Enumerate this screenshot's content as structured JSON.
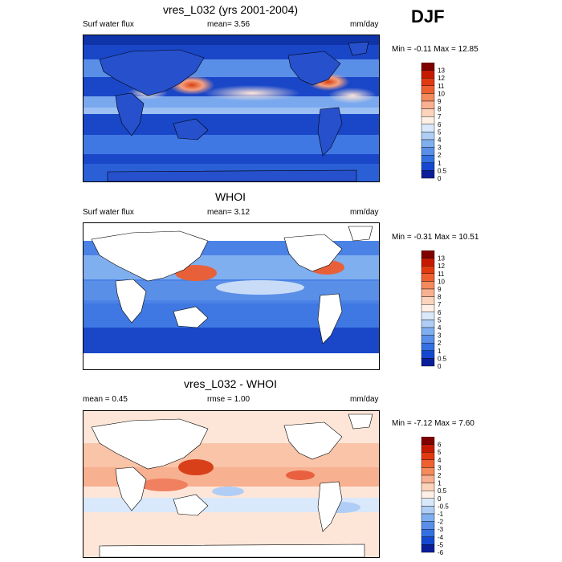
{
  "season": "DJF",
  "panels": [
    {
      "title": "vres_L032 (yrs 2001-2004)",
      "left": "Surf water flux",
      "center": "mean=   3.56",
      "right": "mm/day",
      "minmax": "Min =  -0.11 Max =  12.85",
      "type": "model"
    },
    {
      "title": "WHOI",
      "left": "Surf water flux",
      "center": "mean=   3.12",
      "right": "mm/day",
      "minmax": "Min =  -0.31 Max =  10.51",
      "type": "obs"
    },
    {
      "title": "vres_L032 - WHOI",
      "left": "mean =   0.45",
      "center": "rmse =   1.00",
      "right": "mm/day",
      "minmax": "Min =  -7.12 Max =  7.60",
      "type": "diff"
    }
  ],
  "chart_data": [
    {
      "type": "heatmap",
      "title": "vres_L032 (yrs 2001-2004)",
      "variable": "Surf water flux",
      "units": "mm/day",
      "mean": 3.56,
      "min": -0.11,
      "max": 12.85,
      "colorbar_levels": [
        "13",
        "12",
        "11",
        "10",
        "9",
        "8",
        "7",
        "6",
        "5",
        "4",
        "3",
        "2",
        "1",
        "0.5",
        "0"
      ],
      "colors": [
        "#800000",
        "#c61a00",
        "#e23a10",
        "#ee6030",
        "#f58a5c",
        "#f9b090",
        "#fcd3bb",
        "#fff0e6",
        "#d9e8fb",
        "#b0cef5",
        "#80aff0",
        "#5a8fe8",
        "#3370e0",
        "#1548d0",
        "#0a1e9a"
      ]
    },
    {
      "type": "heatmap",
      "title": "WHOI",
      "variable": "Surf water flux",
      "units": "mm/day",
      "mean": 3.12,
      "min": -0.31,
      "max": 10.51,
      "colorbar_levels": [
        "13",
        "12",
        "11",
        "10",
        "9",
        "8",
        "7",
        "6",
        "5",
        "4",
        "3",
        "2",
        "1",
        "0.5",
        "0"
      ],
      "colors": [
        "#800000",
        "#c61a00",
        "#e23a10",
        "#ee6030",
        "#f58a5c",
        "#f9b090",
        "#fcd3bb",
        "#fff0e6",
        "#d9e8fb",
        "#b0cef5",
        "#80aff0",
        "#5a8fe8",
        "#3370e0",
        "#1548d0",
        "#0a1e9a"
      ]
    },
    {
      "type": "heatmap",
      "title": "vres_L032 - WHOI",
      "units": "mm/day",
      "mean": 0.45,
      "rmse": 1.0,
      "min": -7.12,
      "max": 7.6,
      "colorbar_levels": [
        "6",
        "5",
        "4",
        "3",
        "2",
        "1",
        "0.5",
        "0",
        "-0.5",
        "-1",
        "-2",
        "-3",
        "-4",
        "-5",
        "-6"
      ],
      "colors": [
        "#800000",
        "#c61a00",
        "#e23a10",
        "#ee6030",
        "#f58a5c",
        "#f9b090",
        "#fcd3bb",
        "#fff0e6",
        "#d9e8fb",
        "#b0cef5",
        "#80aff0",
        "#5a8fe8",
        "#3370e0",
        "#1548d0",
        "#0a1e9a"
      ]
    }
  ]
}
